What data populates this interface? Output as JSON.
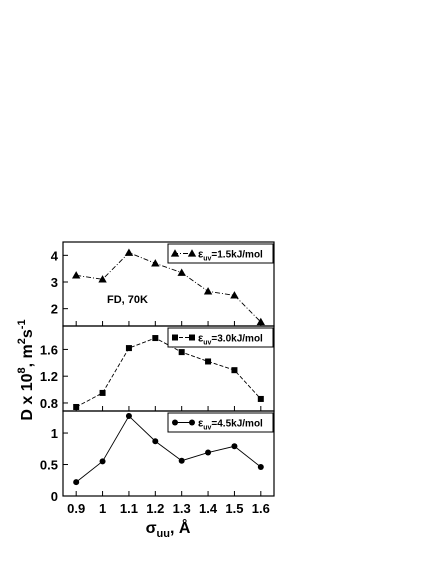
{
  "chart_data": {
    "type": "line",
    "x": [
      0.9,
      1.0,
      1.1,
      1.2,
      1.3,
      1.4,
      1.5,
      1.6
    ],
    "x_tick_labels": [
      "0.9",
      "1",
      "1.1",
      "1.2",
      "1.3",
      "1.4",
      "1.5",
      "1.6"
    ],
    "xlim": [
      0.85,
      1.65
    ],
    "xlabel": {
      "symbol": "σ",
      "subscript": "uu",
      "suffix": ", Å"
    },
    "ylabel": {
      "base": "D x 10",
      "sup1": "8",
      "mid": ", m",
      "sup2": "2",
      "s": "s",
      "sup3": "-1"
    },
    "annotation": "FD, 70K",
    "panels": [
      {
        "series_name": "=1.5kJ/mol",
        "legend_symbol": "ε",
        "legend_sub": "uv",
        "marker": "triangle",
        "line_style": "dashdot",
        "values": [
          3.25,
          3.1,
          4.1,
          3.7,
          3.35,
          2.65,
          2.5,
          1.5
        ],
        "ylim": [
          1.35,
          4.5
        ],
        "yticks": [
          2,
          3,
          4
        ],
        "ytick_labels": [
          "2",
          "3",
          "4"
        ]
      },
      {
        "series_name": "=3.0kJ/mol",
        "legend_symbol": "ε",
        "legend_sub": "uv",
        "marker": "square",
        "line_style": "dashed",
        "values": [
          0.74,
          0.95,
          1.62,
          1.77,
          1.56,
          1.42,
          1.29,
          0.86
        ],
        "ylim": [
          0.68,
          1.95
        ],
        "yticks": [
          0.8,
          1.2,
          1.6
        ],
        "ytick_labels": [
          "0.8",
          "1.2",
          "1.6"
        ]
      },
      {
        "series_name": "=4.5kJ/mol",
        "legend_symbol": "ε",
        "legend_sub": "uv",
        "marker": "circle",
        "line_style": "solid",
        "values": [
          0.22,
          0.55,
          1.27,
          0.87,
          0.56,
          0.69,
          0.79,
          0.46
        ],
        "ylim": [
          0,
          1.35
        ],
        "yticks": [
          0,
          0.5,
          1
        ],
        "ytick_labels": [
          "0",
          "0.5",
          "1"
        ]
      }
    ]
  }
}
